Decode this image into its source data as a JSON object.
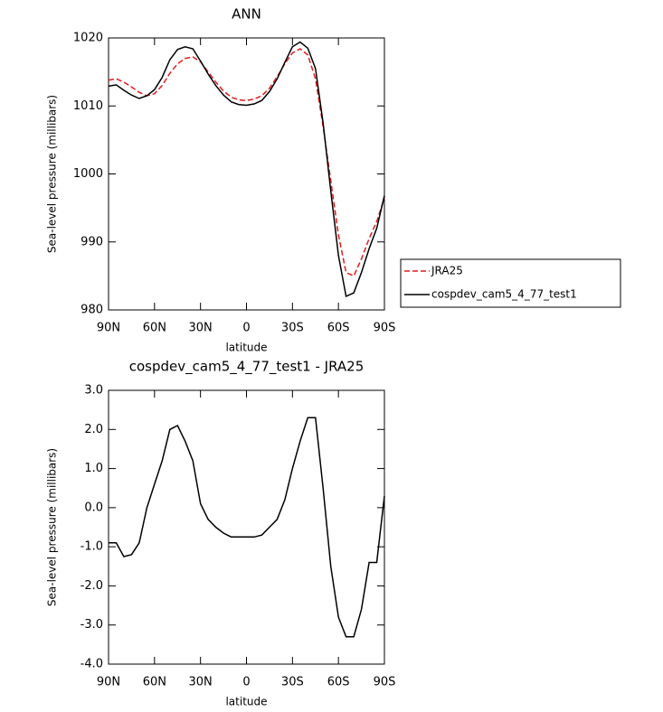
{
  "chart_data": [
    {
      "type": "line",
      "title": "ANN",
      "xlabel": "latitude",
      "ylabel": "Sea-level pressure (millibars)",
      "x": [
        90,
        85,
        80,
        75,
        70,
        65,
        60,
        55,
        50,
        45,
        40,
        35,
        30,
        25,
        20,
        15,
        10,
        5,
        0,
        -5,
        -10,
        -15,
        -20,
        -25,
        -30,
        -35,
        -40,
        -45,
        -50,
        -55,
        -60,
        -65,
        -70,
        -75,
        -80,
        -85,
        -90
      ],
      "series": [
        {
          "name": "JRA25",
          "color": "#e41a1c",
          "linestyle": "dashed",
          "values": [
            1013.8,
            1014,
            1013.5,
            1012.8,
            1012,
            1011.5,
            1011.8,
            1013,
            1014.8,
            1016.2,
            1017,
            1017.2,
            1016.5,
            1015,
            1013.5,
            1012.2,
            1011.3,
            1010.9,
            1010.8,
            1011,
            1011.5,
            1012.6,
            1014.3,
            1016.2,
            1017.8,
            1018.4,
            1017.5,
            1014,
            1007,
            999,
            991,
            985.5,
            985,
            987.5,
            990.5,
            993,
            996.5
          ]
        },
        {
          "name": "cospdev_cam5_4_77_test1",
          "color": "#000000",
          "linestyle": "solid",
          "values": [
            1012.9,
            1013.1,
            1012.3,
            1011.6,
            1011.1,
            1011.5,
            1012.4,
            1014.2,
            1016.8,
            1018.3,
            1018.7,
            1018.4,
            1016.6,
            1014.7,
            1013,
            1011.6,
            1010.6,
            1010.2,
            1010.1,
            1010.3,
            1010.8,
            1012.1,
            1014,
            1016.4,
            1018.7,
            1019.4,
            1018.5,
            1015.5,
            1007.5,
            997.5,
            988,
            982,
            982.5,
            985.5,
            989,
            992,
            996.8
          ]
        }
      ],
      "xlim": [
        90,
        -90
      ],
      "xticks": [
        {
          "value": 90,
          "label": "90N"
        },
        {
          "value": 60,
          "label": "60N"
        },
        {
          "value": 30,
          "label": "30N"
        },
        0,
        {
          "value": -30,
          "label": "30S"
        },
        {
          "value": -60,
          "label": "60S"
        },
        {
          "value": -90,
          "label": "90S"
        }
      ],
      "ylim": [
        980,
        1020
      ],
      "yticks": [
        980,
        990,
        1000,
        1010,
        1020
      ],
      "legend": "outside right"
    },
    {
      "type": "line",
      "title": "cospdev_cam5_4_77_test1 - JRA25",
      "xlabel": "latitude",
      "ylabel": "Sea-level pressure (millibars)",
      "x": [
        90,
        85,
        80,
        75,
        70,
        65,
        60,
        55,
        50,
        45,
        40,
        35,
        30,
        25,
        20,
        15,
        10,
        5,
        0,
        -5,
        -10,
        -15,
        -20,
        -25,
        -30,
        -35,
        -40,
        -45,
        -50,
        -55,
        -60,
        -65,
        -70,
        -75,
        -80,
        -85,
        -90
      ],
      "series": [
        {
          "color": "#000000",
          "linestyle": "solid",
          "values": [
            -0.9,
            -0.9,
            -1.25,
            -1.2,
            -0.9,
            0,
            0.6,
            1.2,
            2.0,
            2.1,
            1.7,
            1.2,
            0.1,
            -0.3,
            -0.5,
            -0.65,
            -0.75,
            -0.75,
            -0.75,
            -0.75,
            -0.7,
            -0.5,
            -0.3,
            0.2,
            1.0,
            1.7,
            2.3,
            2.3,
            0.5,
            -1.5,
            -2.8,
            -3.3,
            -3.3,
            -2.6,
            -1.4,
            -1.4,
            0.3
          ]
        }
      ],
      "xlim": [
        90,
        -90
      ],
      "xticks": [
        {
          "value": 90,
          "label": "90N"
        },
        {
          "value": 60,
          "label": "60N"
        },
        {
          "value": 30,
          "label": "30N"
        },
        0,
        {
          "value": -30,
          "label": "30S"
        },
        {
          "value": -60,
          "label": "60S"
        },
        {
          "value": -90,
          "label": "90S"
        }
      ],
      "ylim": [
        -4,
        3
      ],
      "yticks": [
        {
          "value": -4,
          "label": "-4.0"
        },
        {
          "value": -3,
          "label": "-3.0"
        },
        {
          "value": -2,
          "label": "-2.0"
        },
        {
          "value": -1,
          "label": "-1.0"
        },
        {
          "value": 0,
          "label": "0.0"
        },
        {
          "value": 1,
          "label": "1.0"
        },
        {
          "value": 2,
          "label": "2.0"
        },
        {
          "value": 3,
          "label": "3.0"
        }
      ]
    }
  ]
}
